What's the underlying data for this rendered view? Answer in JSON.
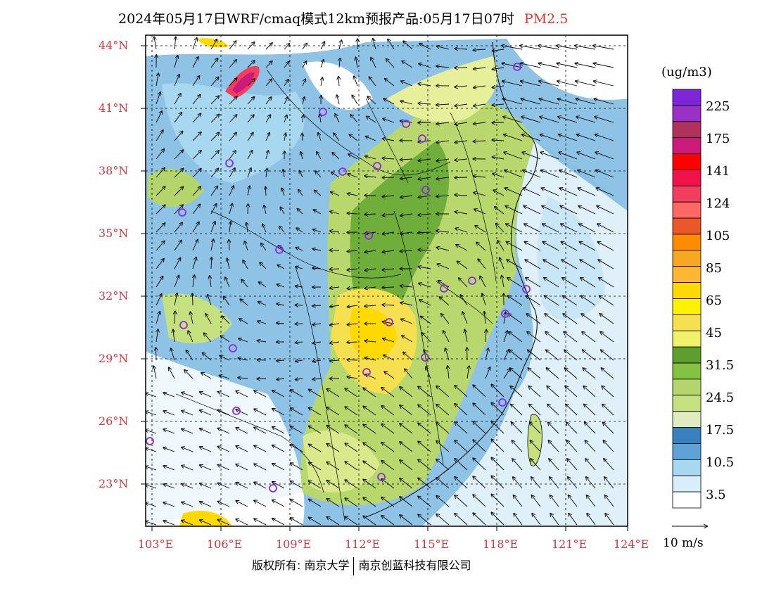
{
  "title": {
    "main": "2024年05月17日WRF/cmaq模式12km预报产品:05月17日07时",
    "variable": "PM2.5",
    "variable_color": "#e8312f"
  },
  "latitude_labels": [
    "44°N",
    "41°N",
    "38°N",
    "35°N",
    "32°N",
    "29°N",
    "26°N",
    "23°N"
  ],
  "longitude_labels": [
    "103°E",
    "106°E",
    "109°E",
    "112°E",
    "115°E",
    "118°E",
    "121°E",
    "124°E"
  ],
  "colorbar": {
    "unit": "(ug/m3)",
    "labels": [
      "225",
      "175",
      "141",
      "124",
      "105",
      "85",
      "65",
      "45",
      "31.5",
      "24.5",
      "17.5",
      "10.5",
      "3.5"
    ],
    "colors": [
      "#7f25d9",
      "#9b32c8",
      "#b0305e",
      "#cc1a7a",
      "#ff0000",
      "#f2124a",
      "#f23e5e",
      "#ff6666",
      "#e8582a",
      "#ff8c00",
      "#f5a623",
      "#ffb733",
      "#ffd900",
      "#fff200",
      "#f7e050",
      "#f0f06a",
      "#5e9e2e",
      "#84c042",
      "#b3d56b",
      "#c5e07e",
      "#e0ecc0",
      "#3a7fbf",
      "#5fa2d8",
      "#a8d8f0",
      "#d8eef8",
      "#ffffff"
    ]
  },
  "wind_legend": {
    "label": "10 m/s"
  },
  "copyright": {
    "left": "版权所有: 南京大学",
    "right": "南京创蓝科技有限公司"
  },
  "monitoring_sites_color": "#8a2be2"
}
